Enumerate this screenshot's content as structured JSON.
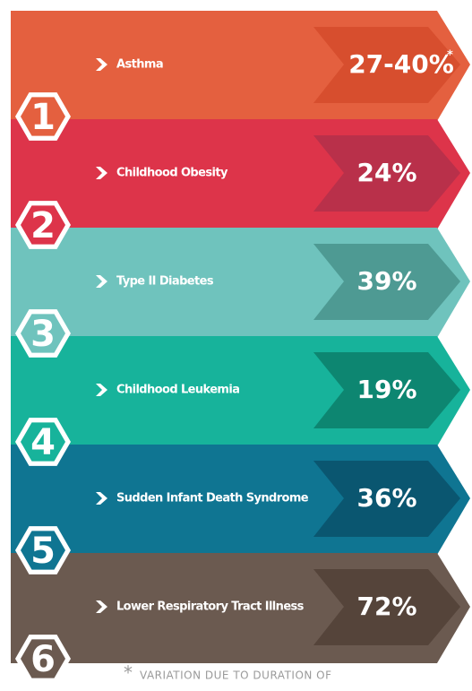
{
  "items": [
    {
      "number": "1",
      "label": "Asthma",
      "value": "27-40%",
      "note": "*",
      "color": "#e4603f",
      "dark": "#d74e2e"
    },
    {
      "number": "2",
      "label": "Childhood Obesity",
      "value": "24%",
      "color": "#dd344a",
      "dark": "#b9304a"
    },
    {
      "number": "3",
      "label": "Type II Diabetes",
      "value": "39%",
      "color": "#6fc3bd",
      "dark": "#4e9a93"
    },
    {
      "number": "4",
      "label": "Childhood Leukemia",
      "value": "19%",
      "color": "#17b39b",
      "dark": "#0d8671"
    },
    {
      "number": "5",
      "label": "Sudden Infant Death Syndrome",
      "value": "36%",
      "color": "#0f7592",
      "dark": "#0a5670"
    },
    {
      "number": "6",
      "label": "Lower Respiratory Tract Illness",
      "value": "72%",
      "color": "#6b5a50",
      "dark": "#55443a"
    }
  ],
  "footnote": {
    "mark": "*",
    "text": "VARIATION DUE TO DURATION OF"
  }
}
